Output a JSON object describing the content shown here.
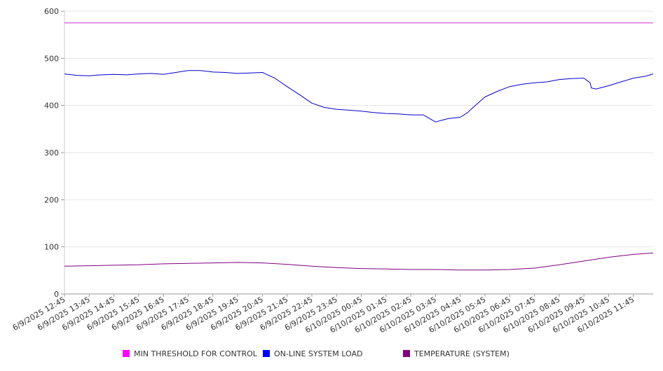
{
  "chart_data": {
    "type": "line",
    "title": "",
    "xlabel": "",
    "ylabel": "",
    "ylim": [
      0,
      600
    ],
    "y_ticks": [
      0,
      100,
      200,
      300,
      400,
      500,
      600
    ],
    "grid": true,
    "legend_position": "bottom",
    "x_labels": [
      "6/9/2025 12:45",
      "6/9/2025 13:45",
      "6/9/2025 14:45",
      "6/9/2025 15:45",
      "6/9/2025 16:45",
      "6/9/2025 17:45",
      "6/9/2025 18:45",
      "6/9/2025 19:45",
      "6/9/2025 20:45",
      "6/9/2025 21:45",
      "6/9/2025 22:45",
      "6/9/2025 23:45",
      "6/10/2025 00:45",
      "6/10/2025 01:45",
      "6/10/2025 02:45",
      "6/10/2025 03:45",
      "6/10/2025 04:45",
      "6/10/2025 05:45",
      "6/10/2025 06:45",
      "6/10/2025 07:45",
      "6/10/2025 08:45",
      "6/10/2025 09:45",
      "6/10/2025 10:45",
      "6/10/2025 11:45"
    ],
    "x_range_hours": [
      0,
      23.8
    ],
    "series": [
      {
        "name": "MIN THRESHOLD FOR CONTROL",
        "color": "#cc33cc",
        "legend_color": "#ff00ff",
        "x": [
          0,
          23.8
        ],
        "values": [
          575,
          575
        ]
      },
      {
        "name": "ON-LINE SYSTEM LOAD",
        "color": "#0000cc",
        "legend_color": "#0000ff",
        "x": [
          0,
          0.5,
          1,
          1.5,
          2,
          2.5,
          3,
          3.5,
          4,
          4.5,
          5,
          5.5,
          6,
          6.5,
          7,
          7.5,
          8,
          8.5,
          9,
          9.5,
          10,
          10.5,
          11,
          11.5,
          12,
          12.5,
          13,
          13.5,
          14,
          14.5,
          15,
          15.5,
          16,
          16.3,
          16.5,
          17,
          17.5,
          18,
          18.5,
          19,
          19.5,
          20,
          20.5,
          21,
          21.25,
          21.3,
          21.5,
          22,
          22.5,
          23,
          23.5,
          23.8
        ],
        "values": [
          467,
          464,
          463,
          465,
          466,
          465,
          467,
          468,
          466,
          470,
          474,
          474,
          471,
          470,
          468,
          469,
          470,
          458,
          440,
          423,
          405,
          396,
          392,
          390,
          388,
          385,
          383,
          382,
          380,
          380,
          365,
          372,
          375,
          385,
          395,
          418,
          430,
          440,
          445,
          448,
          450,
          455,
          457,
          458,
          448,
          437,
          435,
          442,
          450,
          458,
          462,
          467
        ]
      },
      {
        "name": "TEMPERATURE (SYSTEM)",
        "color": "#800080",
        "legend_color": "#800080",
        "x": [
          0,
          1,
          2,
          3,
          4,
          5,
          6,
          7,
          8,
          9,
          10,
          11,
          12,
          13,
          14,
          15,
          16,
          17,
          18,
          19,
          20,
          21,
          22,
          23,
          23.8
        ],
        "values": [
          59,
          60,
          61,
          62,
          64,
          65,
          66,
          67,
          66,
          63,
          59,
          56,
          54,
          53,
          52,
          52,
          51,
          51,
          52,
          55,
          62,
          70,
          78,
          84,
          87
        ]
      }
    ]
  }
}
